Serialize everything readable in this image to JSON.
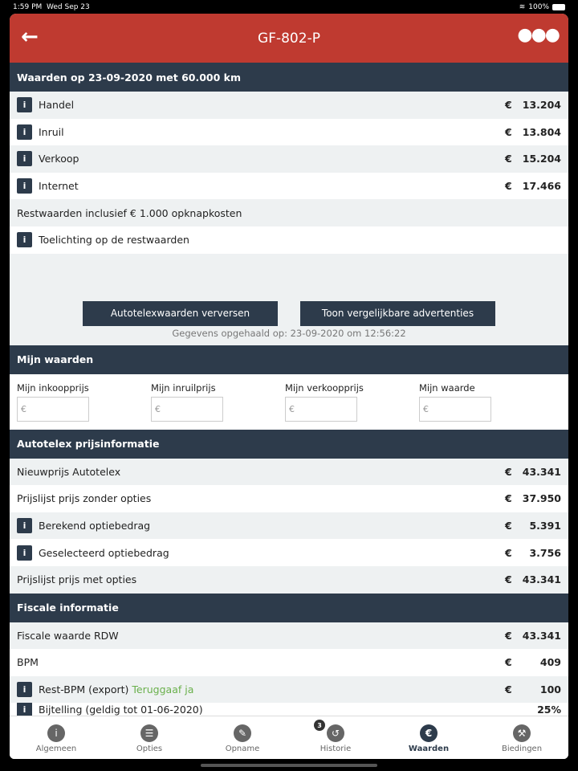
{
  "status": {
    "time": "1:59 PM",
    "date": "Wed Sep 23",
    "battery": "100%"
  },
  "header": {
    "title": "GF-802-P",
    "back_icon": "arrow-left-icon",
    "more_icon": "more-icon"
  },
  "values": {
    "title": "Waarden op 23-09-2020 met 60.000 km",
    "rows": [
      {
        "info": true,
        "label": "Handel",
        "cur": "€",
        "value": "13.204"
      },
      {
        "info": true,
        "label": "Inruil",
        "cur": "€",
        "value": "13.804"
      },
      {
        "info": true,
        "label": "Verkoop",
        "cur": "€",
        "value": "15.204"
      },
      {
        "info": true,
        "label": "Internet",
        "cur": "€",
        "value": "17.466"
      },
      {
        "info": false,
        "label": "Restwaarden inclusief € 1.000 opknapkosten"
      },
      {
        "info": true,
        "label": "Toelichting op de restwaarden"
      }
    ],
    "refresh_button": "Autotelexwaarden verversen",
    "ads_button": "Toon vergelijkbare advertenties",
    "fetched": "Gegevens opgehaald op: 23-09-2020 om 12:56:22"
  },
  "mine": {
    "title": "Mijn waarden",
    "fields": [
      {
        "label": "Mijn inkoopprijs",
        "placeholder": "€"
      },
      {
        "label": "Mijn inruilprijs",
        "placeholder": "€"
      },
      {
        "label": "Mijn verkoopprijs",
        "placeholder": "€"
      },
      {
        "label": "Mijn waarde",
        "placeholder": "€"
      }
    ]
  },
  "autotelex": {
    "title": "Autotelex prijsinformatie",
    "rows": [
      {
        "info": false,
        "label": "Nieuwprijs Autotelex",
        "cur": "€",
        "value": "43.341"
      },
      {
        "info": false,
        "label": "Prijslijst prijs zonder opties",
        "cur": "€",
        "value": "37.950"
      },
      {
        "info": true,
        "label": "Berekend optiebedrag",
        "cur": "€",
        "value": "5.391"
      },
      {
        "info": true,
        "label": "Geselecteerd optiebedrag",
        "cur": "€",
        "value": "3.756"
      },
      {
        "info": false,
        "label": "Prijslijst prijs met opties",
        "cur": "€",
        "value": "43.341"
      }
    ]
  },
  "fiscal": {
    "title": "Fiscale informatie",
    "rows": [
      {
        "info": false,
        "label": "Fiscale waarde RDW",
        "cur": "€",
        "value": "43.341"
      },
      {
        "info": false,
        "label": "BPM",
        "cur": "€",
        "value": "409"
      },
      {
        "info": true,
        "label": "Rest-BPM (export)",
        "extra": "Teruggaaf ja",
        "cur": "€",
        "value": "100"
      },
      {
        "info": true,
        "label": "Bijtelling (geldig tot 01-06-2020)",
        "value": "25%"
      }
    ]
  },
  "tabs": [
    {
      "label": "Algemeen",
      "icon": "i",
      "name": "info-icon"
    },
    {
      "label": "Opties",
      "icon": "☰",
      "name": "checklist-icon"
    },
    {
      "label": "Opname",
      "icon": "✎",
      "name": "pencil-icon"
    },
    {
      "label": "Historie",
      "icon": "↺",
      "name": "history-icon",
      "badge": "3"
    },
    {
      "label": "Waarden",
      "icon": "€",
      "name": "euro-icon",
      "active": true
    },
    {
      "label": "Biedingen",
      "icon": "⚒",
      "name": "gavel-icon"
    }
  ]
}
